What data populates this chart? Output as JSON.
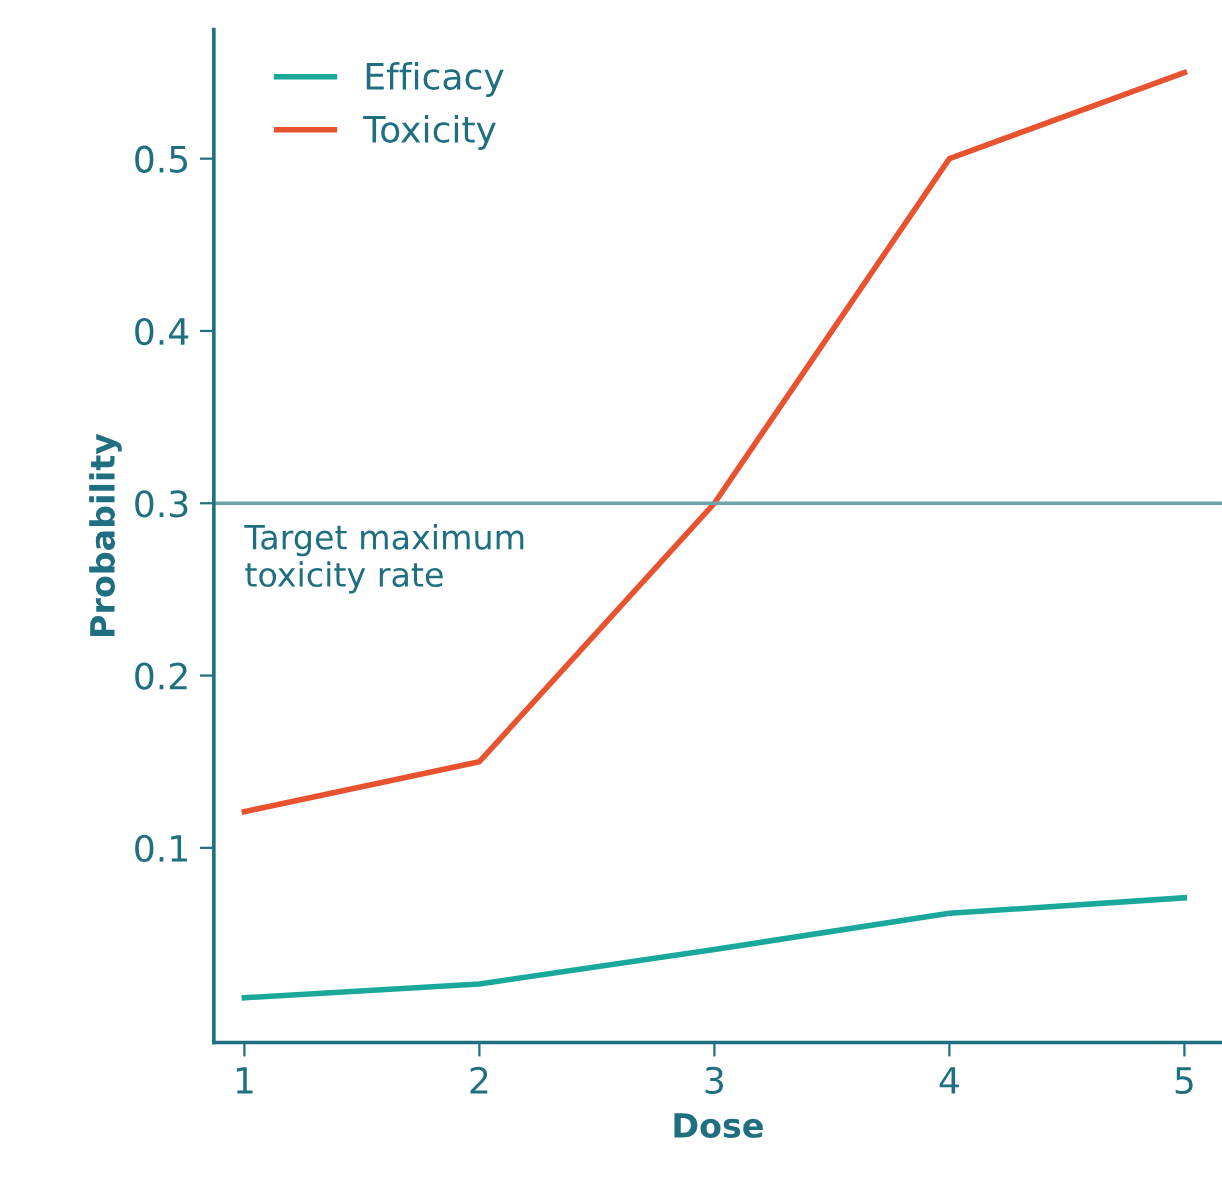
{
  "chart_data": {
    "type": "line",
    "xlabel": "Dose",
    "ylabel": "Probability",
    "x": [
      1,
      2,
      3,
      4,
      5
    ],
    "series": [
      {
        "name": "Efficacy",
        "color": "#1aa89a",
        "values": [
          0.013,
          0.021,
          0.041,
          0.062,
          0.071
        ]
      },
      {
        "name": "Toxicity",
        "color": "#e8532f",
        "values": [
          0.121,
          0.15,
          0.3,
          0.5,
          0.55
        ]
      }
    ],
    "xlim": [
      0.87,
      5.16
    ],
    "ylim": [
      -0.013,
      0.575
    ],
    "xticks": [
      1,
      2,
      3,
      4,
      5
    ],
    "yticks": [
      0.1,
      0.2,
      0.3,
      0.4,
      0.5
    ],
    "ref_lines": [
      {
        "axis": "y",
        "value": 0.3,
        "label": "Target maximum\ntoxicity rate",
        "color": "#6fa3aa"
      }
    ],
    "grid": false,
    "legend": "top left",
    "marker": "none",
    "line_style": "solid"
  }
}
